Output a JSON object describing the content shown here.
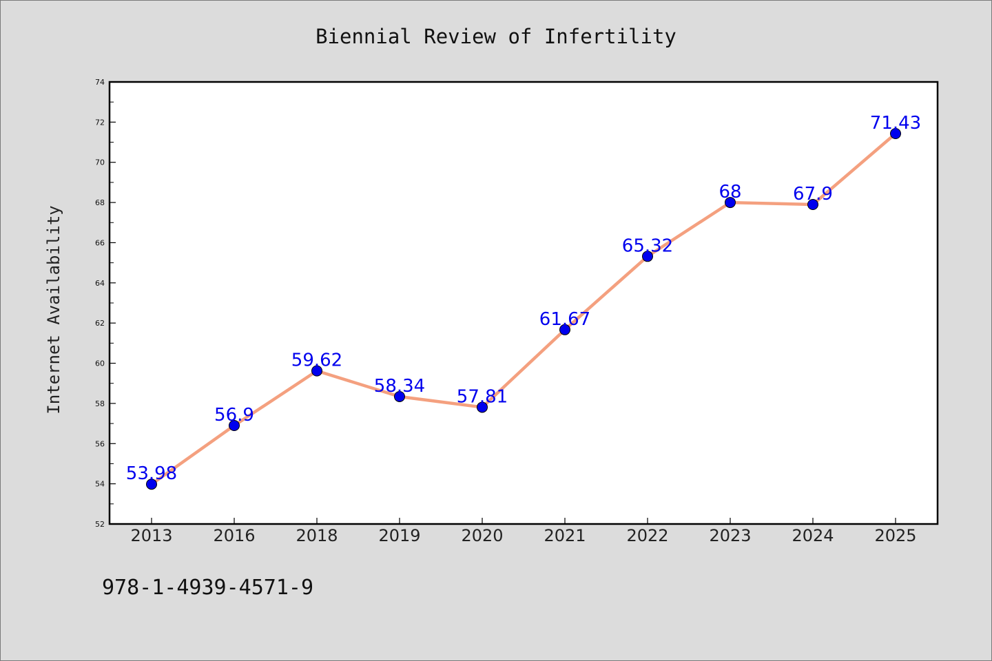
{
  "page": {
    "footer_code": "978-1-4939-4571-9"
  },
  "chart_data": {
    "type": "line",
    "title": "Biennial Review of Infertility",
    "xlabel": "",
    "ylabel": "Internet Availability",
    "categories": [
      "2013",
      "2016",
      "2018",
      "2019",
      "2020",
      "2021",
      "2022",
      "2023",
      "2024",
      "2025"
    ],
    "series": [
      {
        "values": [
          53.98,
          56.9,
          59.62,
          58.34,
          57.81,
          61.67,
          65.32,
          68,
          67.9,
          71.43
        ]
      }
    ],
    "data_labels": [
      "53.98",
      "56.9",
      "59.62",
      "58.34",
      "57.81",
      "61.67",
      "65.32",
      "68",
      "67.9",
      "71.43"
    ],
    "ylim": [
      52,
      74
    ],
    "yticks": [
      "52",
      "54",
      "56",
      "58",
      "60",
      "62",
      "64",
      "66",
      "68",
      "70",
      "72",
      "74"
    ],
    "grid": false,
    "legend": "none",
    "colors": {
      "line": "#f4a07f",
      "marker": "#0000ee",
      "marker_edge": "#000000",
      "label": "#0000ee",
      "plot_background": "#ffffff",
      "figure_background": "#dcdcdc"
    }
  }
}
